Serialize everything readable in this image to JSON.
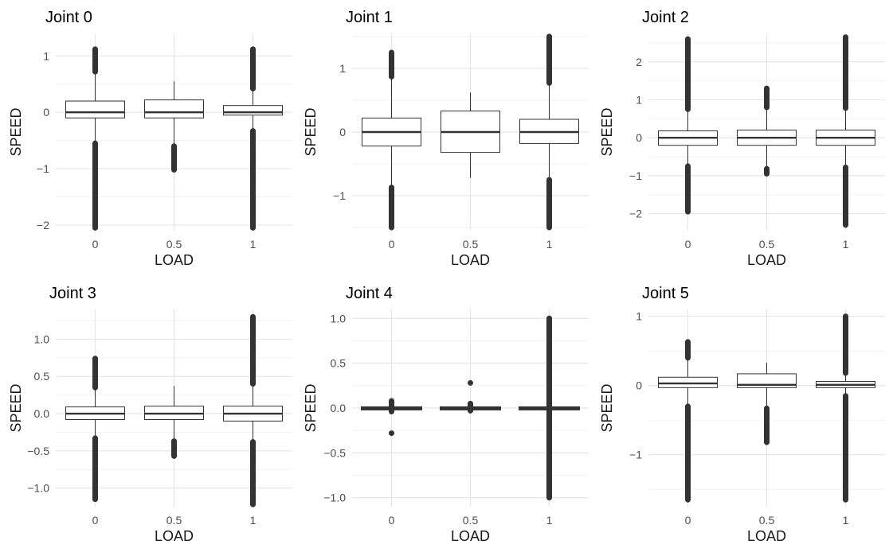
{
  "chart_data": [
    {
      "type": "box",
      "title": "Joint 0",
      "xlabel": "LOAD",
      "ylabel": "SPEED",
      "categories": [
        "0",
        "0.5",
        "1"
      ],
      "yticks": [
        -2,
        -1,
        0,
        1
      ],
      "ytick_labels": [
        "−2",
        "−1",
        "0",
        "1"
      ],
      "ylim": [
        -2.1,
        1.4
      ],
      "grid": true,
      "boxes": [
        {
          "category": "0",
          "q1": -0.1,
          "median": 0.0,
          "q3": 0.2,
          "whisker_low": -0.55,
          "whisker_high": 0.72,
          "outliers_high": [
            0.72,
            1.12
          ],
          "outliers_low": [
            -2.05,
            -0.55
          ]
        },
        {
          "category": "0.5",
          "q1": -0.1,
          "median": 0.0,
          "q3": 0.22,
          "whisker_low": -0.6,
          "whisker_high": 0.55,
          "outliers_high": [],
          "outliers_low": [
            -1.02,
            -0.6
          ]
        },
        {
          "category": "1",
          "q1": -0.05,
          "median": 0.0,
          "q3": 0.12,
          "whisker_low": -0.33,
          "whisker_high": 0.42,
          "outliers_high": [
            0.42,
            1.12
          ],
          "outliers_low": [
            -2.05,
            -0.33
          ]
        }
      ]
    },
    {
      "type": "box",
      "title": "Joint 1",
      "xlabel": "LOAD",
      "ylabel": "SPEED",
      "categories": [
        "0",
        "0.5",
        "1"
      ],
      "yticks": [
        -1,
        0,
        1
      ],
      "ytick_labels": [
        "−1",
        "0",
        "1"
      ],
      "ylim": [
        -1.55,
        1.55
      ],
      "grid": true,
      "boxes": [
        {
          "category": "0",
          "q1": -0.22,
          "median": 0.0,
          "q3": 0.22,
          "whisker_low": -0.87,
          "whisker_high": 0.87,
          "outliers_high": [
            0.87,
            1.25
          ],
          "outliers_low": [
            -1.5,
            -0.87
          ]
        },
        {
          "category": "0.5",
          "q1": -0.32,
          "median": 0.0,
          "q3": 0.33,
          "whisker_low": -0.72,
          "whisker_high": 0.62,
          "outliers_high": [],
          "outliers_low": []
        },
        {
          "category": "1",
          "q1": -0.18,
          "median": 0.0,
          "q3": 0.2,
          "whisker_low": -0.75,
          "whisker_high": 0.77,
          "outliers_high": [
            0.77,
            1.3,
            1.5
          ],
          "outliers_low": [
            -1.5,
            -0.75
          ]
        }
      ]
    },
    {
      "type": "box",
      "title": "Joint 2",
      "xlabel": "LOAD",
      "ylabel": "SPEED",
      "categories": [
        "0",
        "0.5",
        "1"
      ],
      "yticks": [
        -2,
        -1,
        0,
        1,
        2
      ],
      "ytick_labels": [
        "−2",
        "−1",
        "0",
        "1",
        "2"
      ],
      "ylim": [
        -2.45,
        2.75
      ],
      "grid": true,
      "boxes": [
        {
          "category": "0",
          "q1": -0.2,
          "median": 0.0,
          "q3": 0.18,
          "whisker_low": -0.75,
          "whisker_high": 0.75,
          "outliers_high": [
            0.75,
            2.6
          ],
          "outliers_low": [
            -1.95,
            -0.75
          ]
        },
        {
          "category": "0.5",
          "q1": -0.2,
          "median": 0.0,
          "q3": 0.2,
          "whisker_low": -0.8,
          "whisker_high": 0.8,
          "outliers_high": [
            0.8,
            1.3
          ],
          "outliers_low": [
            -0.95,
            -0.82
          ]
        },
        {
          "category": "1",
          "q1": -0.2,
          "median": 0.0,
          "q3": 0.2,
          "whisker_low": -0.78,
          "whisker_high": 0.78,
          "outliers_high": [
            0.78,
            2.65
          ],
          "outliers_low": [
            -2.3,
            -0.78
          ]
        }
      ]
    },
    {
      "type": "box",
      "title": "Joint 3",
      "xlabel": "LOAD",
      "ylabel": "SPEED",
      "categories": [
        "0",
        "0.5",
        "1"
      ],
      "yticks": [
        -1.0,
        -0.5,
        0.0,
        0.5,
        1.0
      ],
      "ytick_labels": [
        "−1.0",
        "−0.5",
        "0.0",
        "0.5",
        "1.0"
      ],
      "ylim": [
        -1.25,
        1.4
      ],
      "grid": true,
      "boxes": [
        {
          "category": "0",
          "q1": -0.08,
          "median": 0.0,
          "q3": 0.09,
          "whisker_low": -0.33,
          "whisker_high": 0.35,
          "outliers_high": [
            0.35,
            0.74
          ],
          "outliers_low": [
            -1.15,
            -0.33
          ]
        },
        {
          "category": "0.5",
          "q1": -0.08,
          "median": 0.0,
          "q3": 0.1,
          "whisker_low": -0.35,
          "whisker_high": 0.37,
          "outliers_high": [],
          "outliers_low": [
            -0.57,
            -0.37
          ]
        },
        {
          "category": "1",
          "q1": -0.1,
          "median": 0.0,
          "q3": 0.1,
          "whisker_low": -0.38,
          "whisker_high": 0.4,
          "outliers_high": [
            0.4,
            1.3
          ],
          "outliers_low": [
            -1.22,
            -0.38
          ]
        }
      ]
    },
    {
      "type": "box",
      "title": "Joint 4",
      "xlabel": "LOAD",
      "ylabel": "SPEED",
      "categories": [
        "0",
        "0.5",
        "1"
      ],
      "yticks": [
        -1.0,
        -0.5,
        0.0,
        0.5,
        1.0
      ],
      "ytick_labels": [
        "−1.0",
        "−0.5",
        "0.0",
        "0.5",
        "1.0"
      ],
      "ylim": [
        -1.1,
        1.1
      ],
      "grid": true,
      "boxes": [
        {
          "category": "0",
          "q1": -0.005,
          "median": 0.0,
          "q3": 0.005,
          "whisker_low": -0.01,
          "whisker_high": 0.01,
          "outliers_high": [
            0.01,
            0.08
          ],
          "outliers_low": [
            -0.04,
            -0.01
          ],
          "extra_points": [
            -0.28
          ]
        },
        {
          "category": "0.5",
          "q1": -0.005,
          "median": 0.0,
          "q3": 0.005,
          "whisker_low": -0.01,
          "whisker_high": 0.01,
          "outliers_high": [
            0.01,
            0.05
          ],
          "outliers_low": [
            -0.03,
            -0.01
          ],
          "extra_points": [
            0.28
          ]
        },
        {
          "category": "1",
          "q1": -0.005,
          "median": 0.0,
          "q3": 0.005,
          "whisker_low": -0.01,
          "whisker_high": 0.01,
          "outliers_high": [
            0.01,
            1.0
          ],
          "outliers_low": [
            -1.0,
            -0.01
          ]
        }
      ]
    },
    {
      "type": "box",
      "title": "Joint 5",
      "xlabel": "LOAD",
      "ylabel": "SPEED",
      "categories": [
        "0",
        "0.5",
        "1"
      ],
      "yticks": [
        -1,
        0,
        1
      ],
      "ytick_labels": [
        "−1",
        "0",
        "1"
      ],
      "ylim": [
        -1.75,
        1.1
      ],
      "grid": true,
      "boxes": [
        {
          "category": "0",
          "q1": -0.03,
          "median": 0.03,
          "q3": 0.12,
          "whisker_low": -0.3,
          "whisker_high": 0.4,
          "outliers_high": [
            0.4,
            0.63
          ],
          "outliers_low": [
            -1.65,
            -0.3
          ]
        },
        {
          "category": "0.5",
          "q1": -0.03,
          "median": 0.01,
          "q3": 0.17,
          "whisker_low": -0.3,
          "whisker_high": 0.33,
          "outliers_high": [],
          "outliers_low": [
            -0.82,
            -0.33
          ]
        },
        {
          "category": "1",
          "q1": -0.03,
          "median": 0.01,
          "q3": 0.06,
          "whisker_low": -0.15,
          "whisker_high": 0.18,
          "outliers_high": [
            0.18,
            1.0
          ],
          "outliers_low": [
            -1.65,
            -0.15
          ]
        }
      ]
    }
  ]
}
